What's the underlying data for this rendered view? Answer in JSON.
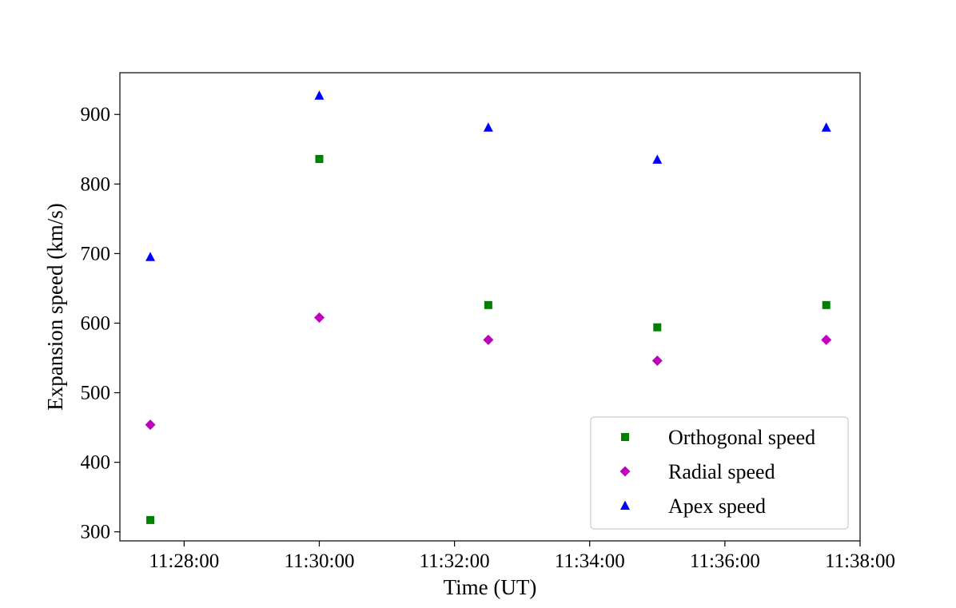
{
  "chart_data": {
    "type": "scatter",
    "xlabel": "Time (UT)",
    "ylabel": "Expansion speed (km/s)",
    "x_ticks": [
      "11:28:00",
      "11:30:00",
      "11:32:00",
      "11:34:00",
      "11:36:00",
      "11:38:00"
    ],
    "y_ticks": [
      300,
      400,
      500,
      600,
      700,
      800,
      900
    ],
    "xlim": [
      "11:27:03",
      "11:38:00"
    ],
    "ylim": [
      287,
      960
    ],
    "grid": false,
    "legend_position": "lower-right",
    "x": [
      "11:27:30",
      "11:30:00",
      "11:32:30",
      "11:35:00",
      "11:37:30"
    ],
    "series": [
      {
        "name": "Orthogonal speed",
        "marker": "square",
        "color": "#008000",
        "values": [
          317,
          836,
          626,
          594,
          626
        ]
      },
      {
        "name": "Radial speed",
        "marker": "diamond",
        "color": "#bf00bf",
        "values": [
          454,
          608,
          576,
          546,
          576
        ]
      },
      {
        "name": "Apex speed",
        "marker": "triangle",
        "color": "#0000ff",
        "values": [
          695,
          927,
          881,
          835,
          881
        ]
      }
    ]
  }
}
